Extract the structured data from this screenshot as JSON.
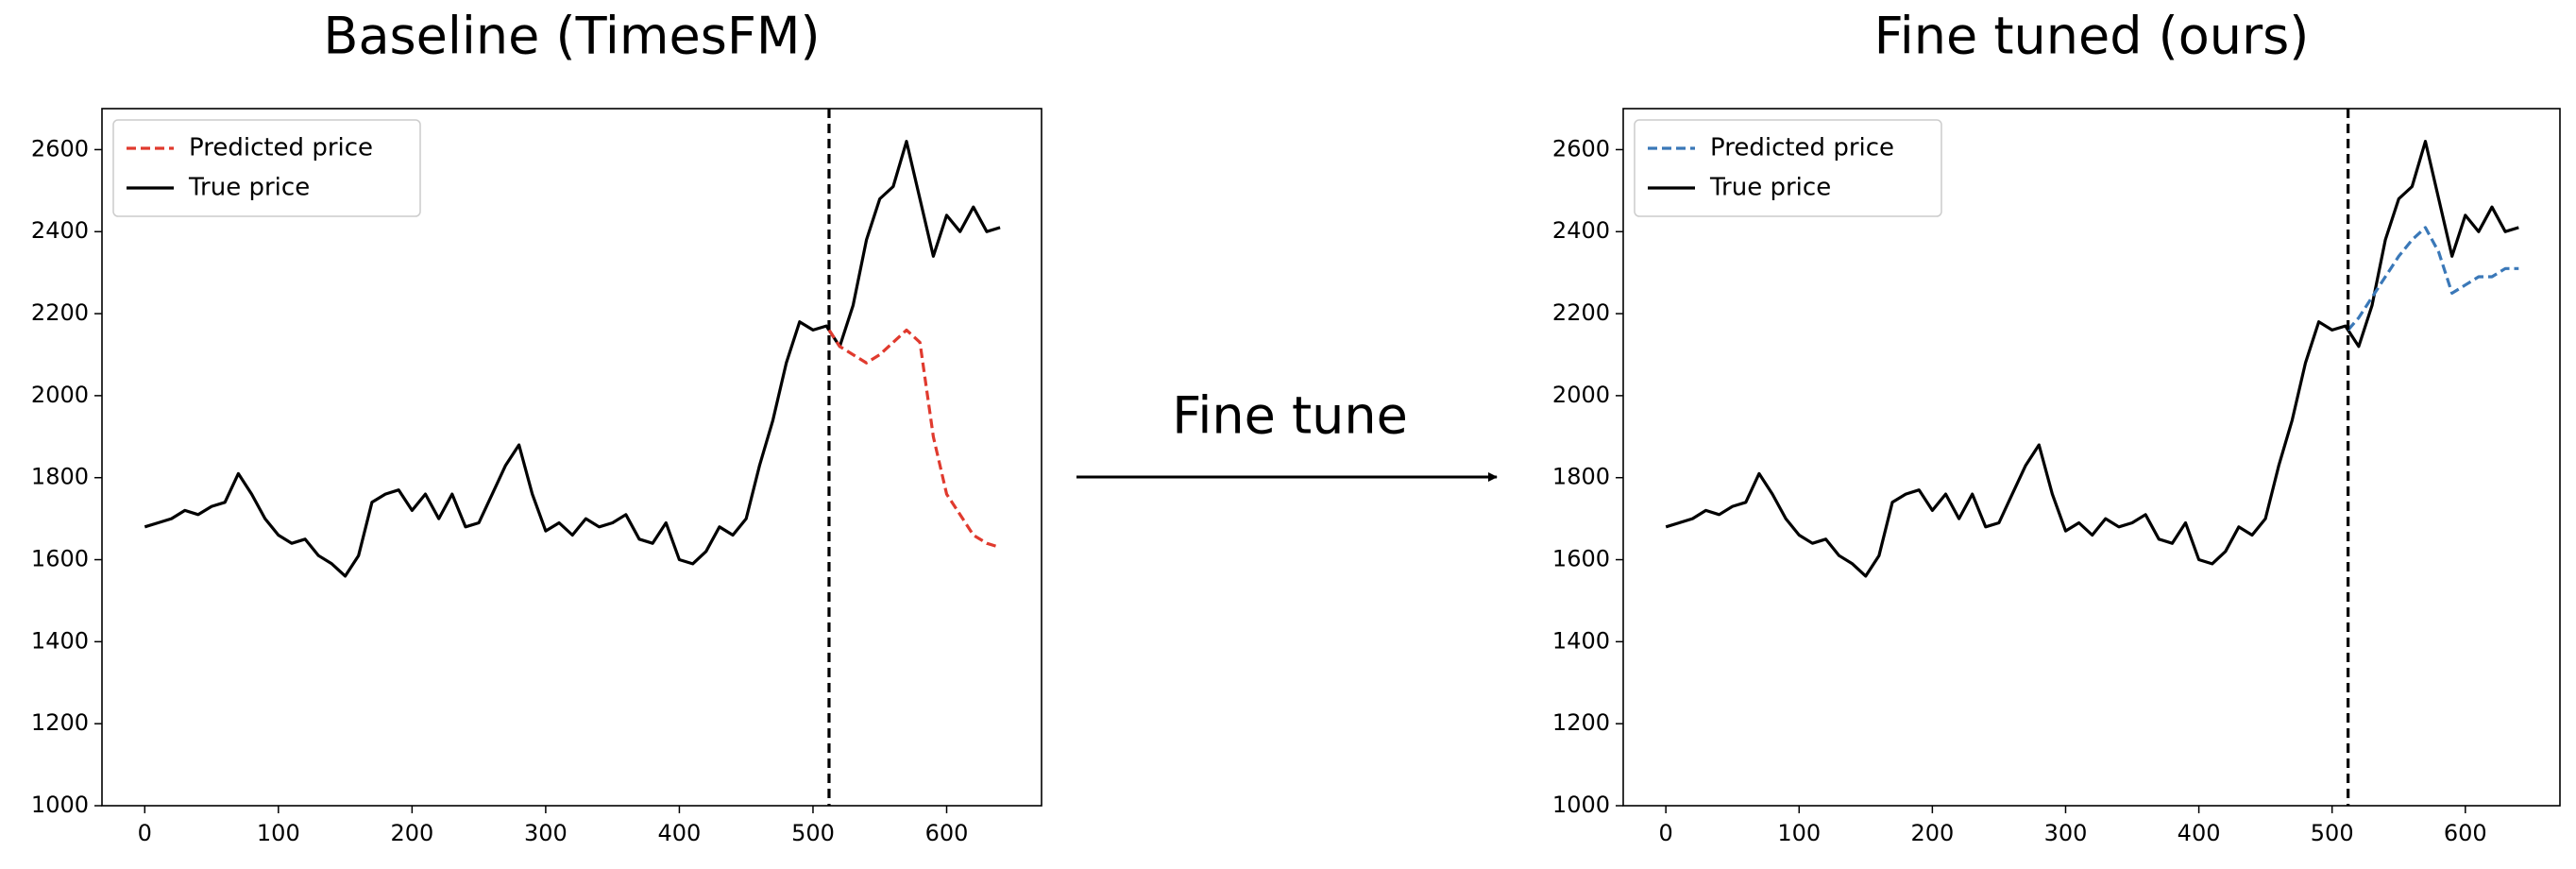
{
  "annotation": "Fine tune",
  "chart_data": [
    {
      "type": "line",
      "title": "Baseline (TimesFM)",
      "xlim": [
        -32,
        671
      ],
      "xticks": [
        0,
        100,
        200,
        300,
        400,
        500,
        600
      ],
      "ylim": [
        1000,
        2700
      ],
      "yticks": [
        1000,
        1200,
        1400,
        1600,
        1800,
        2000,
        2200,
        2400,
        2600
      ],
      "vline": 512,
      "legend": "upper left",
      "series": [
        {
          "name": "Predicted price",
          "color": "#e03a2e",
          "linestyle": "dashed",
          "x": [
            512,
            520,
            530,
            540,
            550,
            560,
            570,
            580,
            590,
            600,
            610,
            620,
            630,
            640
          ],
          "values": [
            2160,
            2120,
            2100,
            2080,
            2100,
            2130,
            2160,
            2130,
            1900,
            1760,
            1710,
            1660,
            1640,
            1630
          ]
        },
        {
          "name": "True price",
          "color": "#000000",
          "linestyle": "solid",
          "x": [
            0,
            10,
            20,
            30,
            40,
            50,
            60,
            70,
            80,
            90,
            100,
            110,
            120,
            130,
            140,
            150,
            160,
            170,
            180,
            190,
            200,
            210,
            220,
            230,
            240,
            250,
            260,
            270,
            280,
            290,
            300,
            310,
            320,
            330,
            340,
            350,
            360,
            370,
            380,
            390,
            400,
            410,
            420,
            430,
            440,
            450,
            460,
            470,
            480,
            490,
            500,
            510,
            520,
            530,
            540,
            550,
            560,
            570,
            580,
            590,
            600,
            610,
            620,
            630,
            640
          ],
          "values": [
            1680,
            1690,
            1700,
            1720,
            1710,
            1730,
            1740,
            1810,
            1760,
            1700,
            1660,
            1640,
            1650,
            1610,
            1590,
            1560,
            1610,
            1740,
            1760,
            1770,
            1720,
            1760,
            1700,
            1760,
            1680,
            1690,
            1760,
            1830,
            1880,
            1760,
            1670,
            1690,
            1660,
            1700,
            1680,
            1690,
            1710,
            1650,
            1640,
            1690,
            1600,
            1590,
            1620,
            1680,
            1660,
            1700,
            1830,
            1940,
            2080,
            2180,
            2160,
            2170,
            2120,
            2220,
            2380,
            2480,
            2510,
            2620,
            2480,
            2340,
            2440,
            2400,
            2460,
            2400,
            2410
          ]
        }
      ]
    },
    {
      "type": "line",
      "title": "Fine tuned (ours)",
      "xlim": [
        -32,
        671
      ],
      "xticks": [
        0,
        100,
        200,
        300,
        400,
        500,
        600
      ],
      "ylim": [
        1000,
        2700
      ],
      "yticks": [
        1000,
        1200,
        1400,
        1600,
        1800,
        2000,
        2200,
        2400,
        2600
      ],
      "vline": 512,
      "legend": "upper left",
      "series": [
        {
          "name": "Predicted price",
          "color": "#3a78b8",
          "linestyle": "dashed",
          "x": [
            512,
            520,
            530,
            540,
            550,
            560,
            570,
            580,
            590,
            600,
            610,
            620,
            630,
            640
          ],
          "values": [
            2160,
            2190,
            2240,
            2290,
            2340,
            2380,
            2410,
            2350,
            2250,
            2270,
            2290,
            2290,
            2310,
            2310
          ]
        },
        {
          "name": "True price",
          "color": "#000000",
          "linestyle": "solid",
          "x": [
            0,
            10,
            20,
            30,
            40,
            50,
            60,
            70,
            80,
            90,
            100,
            110,
            120,
            130,
            140,
            150,
            160,
            170,
            180,
            190,
            200,
            210,
            220,
            230,
            240,
            250,
            260,
            270,
            280,
            290,
            300,
            310,
            320,
            330,
            340,
            350,
            360,
            370,
            380,
            390,
            400,
            410,
            420,
            430,
            440,
            450,
            460,
            470,
            480,
            490,
            500,
            510,
            520,
            530,
            540,
            550,
            560,
            570,
            580,
            590,
            600,
            610,
            620,
            630,
            640
          ],
          "values": [
            1680,
            1690,
            1700,
            1720,
            1710,
            1730,
            1740,
            1810,
            1760,
            1700,
            1660,
            1640,
            1650,
            1610,
            1590,
            1560,
            1610,
            1740,
            1760,
            1770,
            1720,
            1760,
            1700,
            1760,
            1680,
            1690,
            1760,
            1830,
            1880,
            1760,
            1670,
            1690,
            1660,
            1700,
            1680,
            1690,
            1710,
            1650,
            1640,
            1690,
            1600,
            1590,
            1620,
            1680,
            1660,
            1700,
            1830,
            1940,
            2080,
            2180,
            2160,
            2170,
            2120,
            2220,
            2380,
            2480,
            2510,
            2620,
            2480,
            2340,
            2440,
            2400,
            2460,
            2400,
            2410
          ]
        }
      ]
    }
  ]
}
